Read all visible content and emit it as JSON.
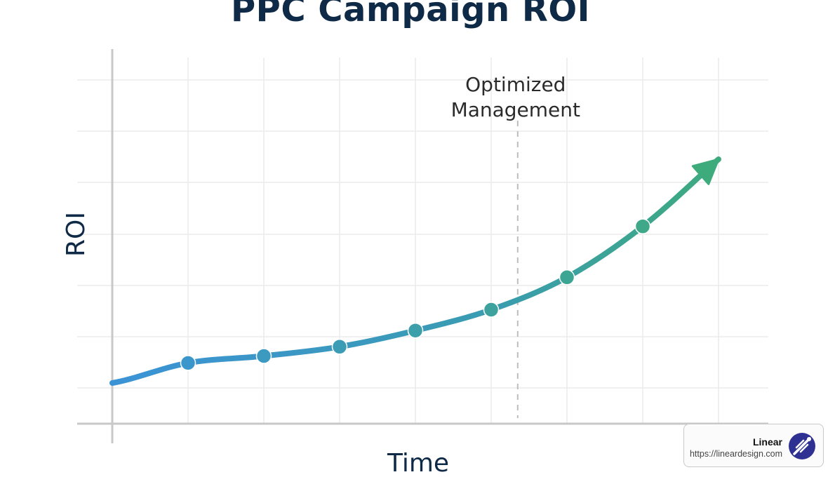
{
  "chart_data": {
    "type": "line",
    "title": "PPC Campaign ROI",
    "xlabel": "Time",
    "ylabel": "ROI",
    "grid": true,
    "x": [
      1,
      2,
      3,
      4,
      5,
      6,
      7,
      8
    ],
    "y": [
      1.2,
      1.5,
      1.9,
      2.6,
      3.5,
      4.9,
      7.1,
      10.0
    ],
    "annotation": {
      "lines": [
        "Optimized",
        "Management"
      ],
      "x": 5.35
    },
    "colors": {
      "start": "#3b93d6",
      "end": "#3eab7c",
      "axis": "#c8c8c8",
      "grid": "#ececec",
      "annotation_line": "#bdbdbd"
    }
  },
  "badge": {
    "brand": "Linear",
    "url": "https://lineardesign.com",
    "logo_color": "#2e3192"
  }
}
